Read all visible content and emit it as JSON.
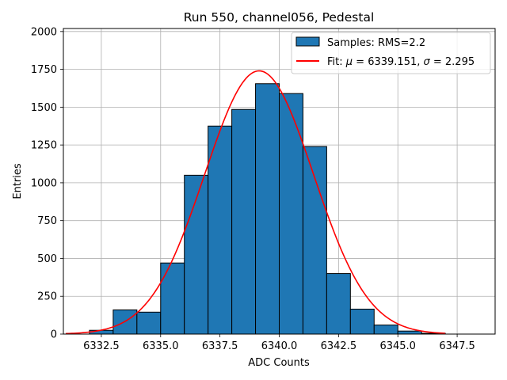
{
  "chart_data": {
    "type": "bar",
    "title": "Run 550, channel056, Pedestal",
    "xlabel": "ADC Counts",
    "ylabel": "Entries",
    "xlim": [
      6330.9,
      6349.1
    ],
    "ylim": [
      0,
      2020
    ],
    "xticks": [
      6332.5,
      6335.0,
      6337.5,
      6340.0,
      6342.5,
      6345.0,
      6347.5
    ],
    "xtick_labels": [
      "6332.5",
      "6335.0",
      "6337.5",
      "6340.0",
      "6342.5",
      "6345.0",
      "6347.5"
    ],
    "yticks": [
      0,
      250,
      500,
      750,
      1000,
      1250,
      1500,
      1750,
      2000
    ],
    "ytick_labels": [
      "0",
      "250",
      "500",
      "750",
      "1000",
      "1250",
      "1500",
      "1750",
      "2000"
    ],
    "grid": true,
    "legend_position": "top-right",
    "histogram": {
      "name": "Samples: RMS=2.2",
      "color": "#1f77b4",
      "edge_color": "#000000",
      "bins": [
        {
          "left": 6332.0,
          "right": 6333.0,
          "count": 25
        },
        {
          "left": 6333.0,
          "right": 6334.0,
          "count": 160
        },
        {
          "left": 6334.0,
          "right": 6335.0,
          "count": 145
        },
        {
          "left": 6335.0,
          "right": 6336.0,
          "count": 470
        },
        {
          "left": 6336.0,
          "right": 6337.0,
          "count": 1050
        },
        {
          "left": 6337.0,
          "right": 6338.0,
          "count": 1375
        },
        {
          "left": 6338.0,
          "right": 6339.0,
          "count": 1485
        },
        {
          "left": 6339.0,
          "right": 6340.0,
          "count": 1655
        },
        {
          "left": 6340.0,
          "right": 6341.0,
          "count": 1590
        },
        {
          "left": 6341.0,
          "right": 6342.0,
          "count": 1240
        },
        {
          "left": 6342.0,
          "right": 6343.0,
          "count": 400
        },
        {
          "left": 6343.0,
          "right": 6344.0,
          "count": 165
        },
        {
          "left": 6344.0,
          "right": 6345.0,
          "count": 60
        },
        {
          "left": 6345.0,
          "right": 6346.0,
          "count": 20
        },
        {
          "left": 6346.0,
          "right": 6347.0,
          "count": 5
        }
      ]
    },
    "fit": {
      "name": "Fit: μ = 6339.151, σ = 2.295",
      "label_prefix": "Fit: ",
      "mu_symbol": "μ",
      "mu_text": " = 6339.151, ",
      "sigma_symbol": "σ",
      "sigma_text": " = 2.295",
      "color": "#ff0000",
      "mu": 6339.151,
      "sigma": 2.295,
      "amplitude": 1740,
      "x_range": [
        6331.0,
        6347.0
      ]
    }
  }
}
